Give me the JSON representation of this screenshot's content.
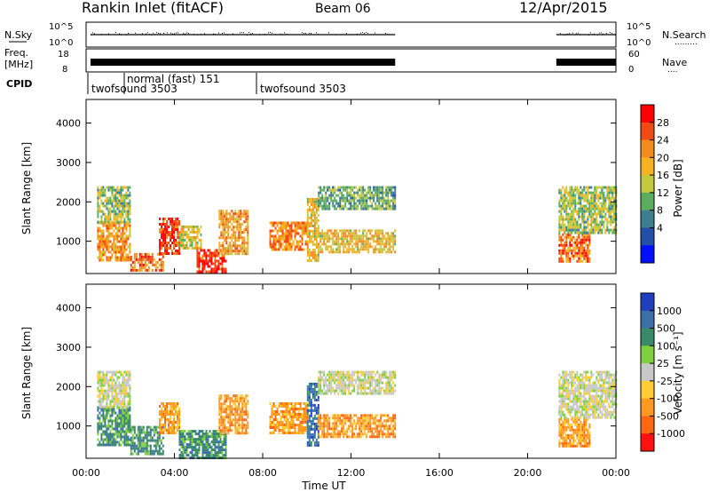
{
  "header": {
    "station": "Rankin Inlet (fitACF)",
    "beam": "Beam 06",
    "date": "12/Apr/2015"
  },
  "top_panels": {
    "nsky_label": "N.Sky",
    "nsky_ticks": [
      "10^5",
      "10^0"
    ],
    "nsearch_label": "N.Search",
    "nsearch_ticks": [
      "10^5",
      "10^0"
    ],
    "freq_label_1": "Freq.",
    "freq_label_2": "[MHz]",
    "freq_ticks": [
      "18",
      "8"
    ],
    "nave_label": "Nave",
    "nave_ticks": [
      "60",
      "0"
    ],
    "cpid_label": "CPID",
    "cpid_segments": [
      {
        "name": "twofsound 3503",
        "start_h": 0.0
      },
      {
        "name": "normal (fast) 151",
        "start_h": 1.9
      },
      {
        "name": "twofsound 3503",
        "start_h": 8.0
      }
    ]
  },
  "time_axis": {
    "label": "Time UT",
    "ticks": [
      "00:00",
      "04:00",
      "08:00",
      "12:00",
      "16:00",
      "20:00",
      "00:00"
    ],
    "range_h": [
      0,
      24
    ]
  },
  "power_colorbar": {
    "label": "Power [dB]",
    "ticks": [
      "28",
      "24",
      "20",
      "16",
      "12",
      "8",
      "4"
    ],
    "colors": [
      "#ff0000",
      "#f24a14",
      "#f28c1e",
      "#f5b324",
      "#c4c940",
      "#5cae5f",
      "#3d7f8e",
      "#2050a8",
      "#0010ff"
    ]
  },
  "velocity_colorbar": {
    "label": "Velocity [m s⁻¹]",
    "ticks": [
      "1000",
      "500",
      "100",
      "25",
      "-25",
      "-100",
      "-500",
      "-1000"
    ],
    "colors": [
      "#1f3fbf",
      "#3b6fa8",
      "#3a8a6a",
      "#7fcf3f",
      "#c8c8c8",
      "#ffcc33",
      "#ff9922",
      "#ff6611",
      "#ff1111"
    ]
  },
  "chart_data": [
    {
      "type": "heatmap",
      "title": "Power",
      "xlabel": "Time UT",
      "ylabel": "Slant Range [km]",
      "x_range_h": [
        0,
        24
      ],
      "ylim": [
        180,
        4600
      ],
      "y_ticks": [
        1000,
        2000,
        3000,
        4000
      ],
      "colorbar": "Power [dB]",
      "regions": [
        {
          "t": [
            0.5,
            2.0
          ],
          "r": [
            500,
            1500
          ],
          "level": 0.7
        },
        {
          "t": [
            0.5,
            2.0
          ],
          "r": [
            1500,
            2400
          ],
          "level": 0.45
        },
        {
          "t": [
            2.0,
            3.5
          ],
          "r": [
            250,
            700
          ],
          "level": 0.8
        },
        {
          "t": [
            3.3,
            4.2
          ],
          "r": [
            700,
            1600
          ],
          "level": 0.9
        },
        {
          "t": [
            4.2,
            5.2
          ],
          "r": [
            800,
            1400
          ],
          "level": 0.55
        },
        {
          "t": [
            5.0,
            6.3
          ],
          "r": [
            200,
            800
          ],
          "level": 0.95
        },
        {
          "t": [
            6.0,
            7.3
          ],
          "r": [
            700,
            1800
          ],
          "level": 0.7
        },
        {
          "t": [
            8.3,
            10.0
          ],
          "r": [
            800,
            1500
          ],
          "level": 0.75
        },
        {
          "t": [
            10.0,
            10.5
          ],
          "r": [
            500,
            2100
          ],
          "level": 0.6
        },
        {
          "t": [
            10.5,
            14.0
          ],
          "r": [
            700,
            1300
          ],
          "level": 0.6
        },
        {
          "t": [
            10.5,
            14.0
          ],
          "r": [
            1800,
            2400
          ],
          "level": 0.35
        },
        {
          "t": [
            21.4,
            22.8
          ],
          "r": [
            500,
            1200
          ],
          "level": 0.8
        },
        {
          "t": [
            21.4,
            24.0
          ],
          "r": [
            1200,
            2400
          ],
          "level": 0.45
        }
      ]
    },
    {
      "type": "heatmap",
      "title": "Velocity",
      "xlabel": "Time UT",
      "ylabel": "Slant Range [km]",
      "x_range_h": [
        0,
        24
      ],
      "ylim": [
        180,
        4600
      ],
      "y_ticks": [
        1000,
        2000,
        3000,
        4000
      ],
      "colorbar": "Velocity [m s-1]",
      "regions": [
        {
          "t": [
            0.5,
            2.0
          ],
          "r": [
            500,
            1500
          ],
          "vel": 100
        },
        {
          "t": [
            0.5,
            2.0
          ],
          "r": [
            1500,
            2400
          ],
          "vel": 0
        },
        {
          "t": [
            2.0,
            3.5
          ],
          "r": [
            300,
            1000
          ],
          "vel": 100
        },
        {
          "t": [
            3.3,
            4.2
          ],
          "r": [
            800,
            1600
          ],
          "vel": -100
        },
        {
          "t": [
            4.2,
            6.3
          ],
          "r": [
            200,
            900
          ],
          "vel": 100
        },
        {
          "t": [
            6.0,
            7.3
          ],
          "r": [
            800,
            1800
          ],
          "vel": -100
        },
        {
          "t": [
            8.3,
            10.0
          ],
          "r": [
            800,
            1600
          ],
          "vel": -100
        },
        {
          "t": [
            10.0,
            10.5
          ],
          "r": [
            500,
            2100
          ],
          "vel": 500
        },
        {
          "t": [
            10.5,
            14.0
          ],
          "r": [
            700,
            1300
          ],
          "vel": -100
        },
        {
          "t": [
            10.5,
            14.0
          ],
          "r": [
            1800,
            2400
          ],
          "vel": 0
        },
        {
          "t": [
            21.4,
            22.8
          ],
          "r": [
            500,
            1200
          ],
          "vel": -100
        },
        {
          "t": [
            21.4,
            24.0
          ],
          "r": [
            1200,
            2400
          ],
          "vel": 0
        }
      ]
    }
  ]
}
